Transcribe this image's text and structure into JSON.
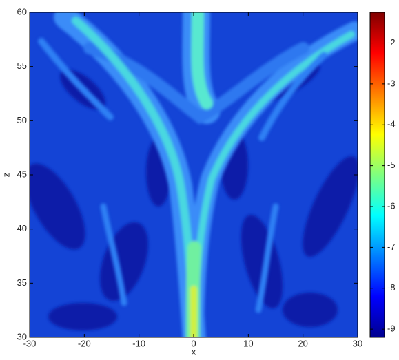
{
  "chart_data": {
    "type": "contour",
    "xlabel": "x",
    "ylabel": "z",
    "xlim": [
      -30,
      30
    ],
    "xticks": [
      -30,
      -20,
      -10,
      0,
      10,
      20,
      30
    ],
    "ylim": [
      30,
      60
    ],
    "yticks": [
      30,
      35,
      40,
      45,
      50,
      55,
      60
    ],
    "colormap": "jet",
    "clim": [
      -9.2,
      -1.25
    ],
    "cticks": [
      -9,
      -8,
      -7,
      -6,
      -5,
      -4,
      -3,
      -2
    ]
  }
}
